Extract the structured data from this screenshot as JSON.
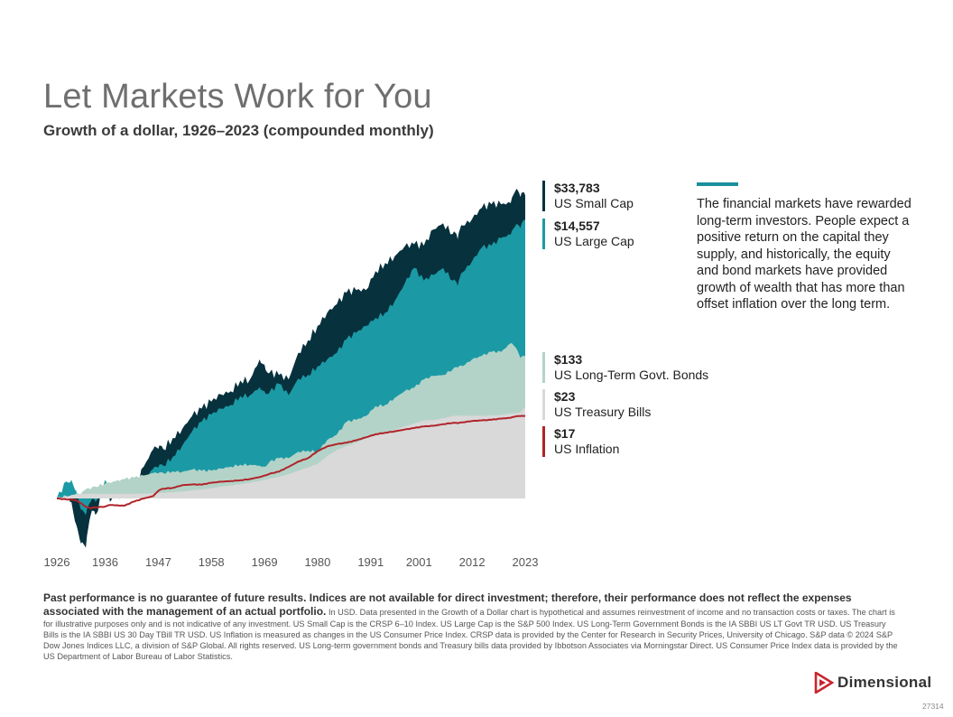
{
  "header": {
    "title": "Let Markets Work for You",
    "subtitle": "Growth of a dollar, 1926–2023 (compounded monthly)"
  },
  "chart_data": {
    "type": "area",
    "title": "Growth of a dollar, 1926–2023 (compounded monthly)",
    "x_tick_labels": [
      "1926",
      "1936",
      "1947",
      "1958",
      "1969",
      "1980",
      "1991",
      "2001",
      "2012",
      "2023"
    ],
    "y_scale": "log",
    "ylim": [
      0.2,
      60000
    ],
    "years": [
      1926,
      1928,
      1929,
      1930,
      1931,
      1932,
      1933,
      1934,
      1936,
      1937,
      1938,
      1940,
      1942,
      1944,
      1946,
      1947,
      1948,
      1950,
      1952,
      1954,
      1956,
      1958,
      1960,
      1962,
      1964,
      1966,
      1968,
      1969,
      1970,
      1972,
      1974,
      1976,
      1978,
      1980,
      1982,
      1984,
      1986,
      1988,
      1990,
      1992,
      1994,
      1996,
      1998,
      2000,
      2002,
      2004,
      2006,
      2008,
      2009,
      2010,
      2012,
      2014,
      2016,
      2018,
      2020,
      2021,
      2022,
      2023
    ],
    "series": [
      {
        "name": "US Small Cap",
        "final_value": "$33,783",
        "color": "#06313d",
        "values": [
          1,
          1.4,
          0.9,
          0.45,
          0.25,
          0.22,
          0.6,
          0.6,
          1.6,
          0.9,
          1.1,
          1.0,
          1.3,
          3.0,
          5.5,
          5.5,
          5.5,
          8,
          11,
          17,
          22,
          28,
          36,
          40,
          58,
          60,
          120,
          100,
          75,
          70,
          60,
          150,
          230,
          380,
          600,
          800,
          1200,
          1300,
          1300,
          2500,
          3300,
          4200,
          5800,
          6300,
          6000,
          10500,
          13000,
          9000,
          7500,
          12000,
          15000,
          22000,
          25000,
          25000,
          26000,
          40000,
          32000,
          33783
        ]
      },
      {
        "name": "US Large Cap",
        "final_value": "$14,557",
        "color": "#1b9aa5",
        "values": [
          1,
          1.8,
          1.9,
          1.3,
          0.7,
          0.6,
          0.9,
          0.9,
          1.9,
          1.2,
          1.6,
          1.4,
          1.3,
          1.9,
          2.8,
          2.9,
          3.1,
          4.2,
          6.2,
          10,
          14,
          18,
          22,
          25,
          34,
          35,
          46,
          40,
          38,
          52,
          35,
          62,
          70,
          95,
          120,
          150,
          240,
          300,
          380,
          500,
          600,
          900,
          1600,
          2800,
          1800,
          2200,
          2800,
          1800,
          1500,
          2400,
          3500,
          5600,
          6000,
          7800,
          8800,
          12000,
          11000,
          14557
        ]
      },
      {
        "name": "US Long-Term Govt. Bonds",
        "final_value": "$133",
        "color": "#b4d3c8",
        "values": [
          1,
          1.09,
          1.13,
          1.19,
          1.17,
          1.37,
          1.37,
          1.5,
          1.67,
          1.7,
          1.8,
          1.95,
          2.05,
          2.2,
          2.4,
          2.35,
          2.4,
          2.55,
          2.5,
          2.7,
          2.6,
          2.6,
          2.8,
          3.0,
          3.2,
          3.2,
          3.1,
          3.0,
          3.5,
          4.0,
          4.0,
          5.0,
          5.2,
          5.0,
          7.5,
          9.0,
          14,
          15,
          17,
          24,
          25,
          32,
          40,
          45,
          60,
          68,
          70,
          85,
          90,
          95,
          120,
          135,
          155,
          155,
          210,
          180,
          125,
          133
        ]
      },
      {
        "name": "US Treasury Bills",
        "final_value": "$23",
        "color": "#d9d9d9",
        "values": [
          1,
          1.07,
          1.12,
          1.15,
          1.16,
          1.17,
          1.17,
          1.17,
          1.17,
          1.17,
          1.17,
          1.17,
          1.17,
          1.18,
          1.19,
          1.2,
          1.21,
          1.24,
          1.27,
          1.32,
          1.36,
          1.42,
          1.5,
          1.56,
          1.63,
          1.72,
          1.83,
          1.9,
          1.97,
          2.1,
          2.3,
          2.6,
          2.9,
          3.3,
          4.3,
          5.3,
          6.1,
          6.8,
          7.9,
          9.1,
          9.6,
          10.7,
          11.9,
          13.2,
          14.6,
          14.9,
          15.8,
          17.0,
          17.2,
          17.2,
          17.2,
          17.2,
          17.3,
          17.7,
          18.6,
          18.7,
          19.3,
          23
        ]
      },
      {
        "name": "US Inflation",
        "final_value": "$17",
        "color": "#b0242a",
        "values": [
          1,
          0.97,
          0.97,
          0.95,
          0.86,
          0.77,
          0.74,
          0.76,
          0.78,
          0.82,
          0.81,
          0.8,
          0.91,
          1.0,
          1.09,
          1.3,
          1.4,
          1.44,
          1.58,
          1.62,
          1.61,
          1.72,
          1.78,
          1.82,
          1.87,
          1.95,
          2.09,
          2.2,
          2.33,
          2.52,
          2.97,
          3.56,
          4.0,
          5.1,
          6.0,
          6.5,
          6.8,
          7.4,
          8.2,
          9.1,
          9.6,
          10.1,
          10.7,
          11.3,
          11.9,
          12.2,
          12.9,
          13.5,
          13.3,
          13.7,
          14.4,
          14.7,
          15.0,
          15.6,
          16.1,
          16.8,
          17.0,
          17
        ]
      }
    ]
  },
  "legend": [
    {
      "value": "$33,783",
      "name": "US Small Cap",
      "color": "#06313d"
    },
    {
      "value": "$14,557",
      "name": "US Large Cap",
      "color": "#1b9aa5"
    },
    {
      "value": "$133",
      "name": "US Long-Term Govt. Bonds",
      "color": "#b4d3c8"
    },
    {
      "value": "$23",
      "name": "US Treasury Bills",
      "color": "#d9d9d9"
    },
    {
      "value": "$17",
      "name": "US Inflation",
      "color": "#b0242a"
    }
  ],
  "callout": {
    "text": "The financial markets have rewarded long-term investors. People expect a positive return on the capital they supply, and historically, the equity and bond markets have provided growth of wealth that has more than offset inflation over the long term."
  },
  "disclaimer": {
    "lead": "Past performance is no guarantee of future results. Indices are not available for direct investment; therefore, their performance does not reflect the expenses associated with the management of an actual portfolio.",
    "body": " In USD. Data presented in the Growth of a Dollar chart is hypothetical and assumes reinvestment of income and no transaction costs or taxes. The chart is for illustrative purposes only and is not indicative of any investment. US Small Cap is the CRSP 6–10 Index. US Large Cap is the S&P 500 Index. US Long-Term Government Bonds is the IA SBBI US LT Govt TR USD. US Treasury Bills is the IA SBBI US 30 Day TBill TR USD. US Inflation is measured as changes in the US Consumer Price Index. CRSP data is provided by the Center for Research in Security Prices, University of Chicago. S&P data © 2024 S&P Dow Jones Indices LLC, a division of S&P Global. All rights reserved. US Long-term government bonds and Treasury bills data provided by Ibbotson Associates via Morningstar Direct. US Consumer Price Index data is provided by the US Department of Labor Bureau of Labor Statistics."
  },
  "brand": {
    "name": "Dimensional",
    "logo_color": "#c8262e"
  },
  "footer": {
    "code": "27314"
  }
}
